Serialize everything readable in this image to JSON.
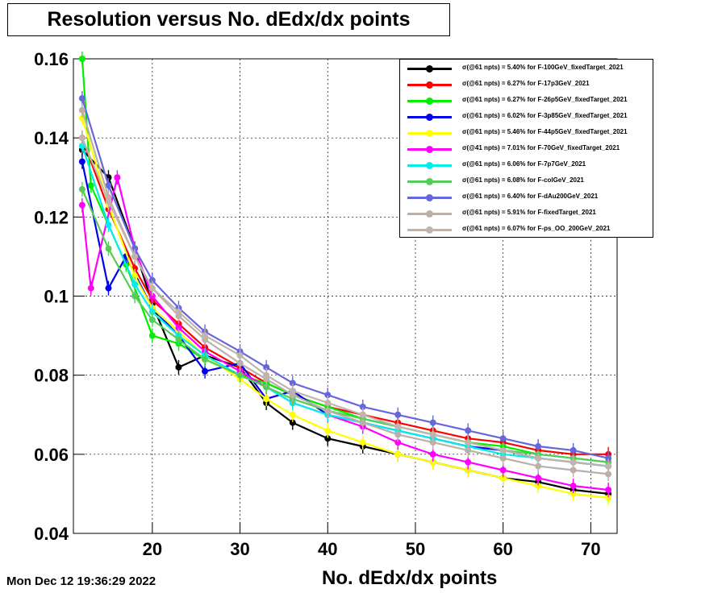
{
  "title": "Resolution versus No. dEdx/dx points",
  "xlabel": "No. dEdx/dx points",
  "datestamp": "Mon Dec 12 19:36:29 2022",
  "chart_data": {
    "type": "scatter",
    "title": "Resolution versus No. dEdx/dx points",
    "xlabel": "No. dEdx/dx points",
    "ylabel": "",
    "xlim": [
      11,
      73
    ],
    "ylim": [
      0.04,
      0.16
    ],
    "x_ticks": [
      "20",
      "30",
      "40",
      "50",
      "60",
      "70"
    ],
    "y_ticks": [
      "0.04",
      "0.06",
      "0.08",
      "0.1",
      "0.12",
      "0.14",
      "0.16"
    ],
    "grid": true,
    "legend_position": "top-right",
    "series": [
      {
        "name": "σ(@61 npts) =  5.40% for F-100GeV_fixedTarget_2021",
        "color": "#000000",
        "x": [
          12,
          15,
          18,
          20,
          23,
          26,
          30,
          33,
          36,
          40,
          44,
          48,
          52,
          56,
          60,
          64,
          68,
          72
        ],
        "y": [
          0.137,
          0.13,
          0.112,
          0.098,
          0.082,
          0.085,
          0.082,
          0.073,
          0.068,
          0.064,
          0.062,
          0.06,
          0.058,
          0.056,
          0.054,
          0.053,
          0.051,
          0.05
        ]
      },
      {
        "name": "σ(@61 npts) =  6.27% for F-17p3GeV_2021",
        "color": "#ff0000",
        "x": [
          12,
          15,
          18,
          20,
          23,
          26,
          30,
          33,
          36,
          40,
          44,
          48,
          52,
          56,
          60,
          64,
          68,
          72
        ],
        "y": [
          0.14,
          0.122,
          0.107,
          0.099,
          0.093,
          0.087,
          0.082,
          0.078,
          0.075,
          0.072,
          0.07,
          0.068,
          0.066,
          0.064,
          0.063,
          0.061,
          0.06,
          0.06
        ]
      },
      {
        "name": "σ(@61 npts) =  6.27% for F-26p5GeV_fixedTarget_2021",
        "color": "#00ee00",
        "x": [
          12,
          13,
          17,
          20,
          23,
          26,
          30,
          33,
          36,
          40,
          44,
          48,
          52,
          56,
          60,
          64,
          68,
          72
        ],
        "y": [
          0.16,
          0.128,
          0.108,
          0.09,
          0.088,
          0.084,
          0.08,
          0.078,
          0.075,
          0.072,
          0.069,
          0.067,
          0.065,
          0.063,
          0.062,
          0.06,
          0.059,
          0.058
        ]
      },
      {
        "name": "σ(@61 npts) =  6.02% for F-3p85GeV_fixedTarget_2021",
        "color": "#0000ee",
        "x": [
          12,
          15,
          17,
          20,
          23,
          26,
          30,
          33,
          36,
          40,
          44,
          48,
          52,
          56,
          60,
          64,
          68,
          72
        ],
        "y": [
          0.134,
          0.102,
          0.11,
          0.097,
          0.09,
          0.081,
          0.083,
          0.074,
          0.076,
          0.07,
          0.068,
          0.066,
          0.064,
          0.062,
          0.061,
          0.059,
          0.058,
          0.057
        ]
      },
      {
        "name": "σ(@61 npts) =  5.46% for F-44p5GeV_fixedTarget_2021",
        "color": "#ffff00",
        "x": [
          12,
          15,
          18,
          20,
          23,
          26,
          30,
          33,
          36,
          40,
          44,
          48,
          52,
          56,
          60,
          64,
          68,
          72
        ],
        "y": [
          0.145,
          0.123,
          0.105,
          0.097,
          0.091,
          0.085,
          0.079,
          0.074,
          0.07,
          0.066,
          0.063,
          0.06,
          0.058,
          0.056,
          0.054,
          0.052,
          0.05,
          0.049
        ]
      },
      {
        "name": "σ(@41 npts) =  7.01% for F-70GeV_fixedTarget_2021",
        "color": "#ff00ff",
        "x": [
          12,
          13,
          16,
          18,
          20,
          23,
          26,
          30,
          33,
          36,
          40,
          44,
          48,
          52,
          56,
          60,
          64,
          68,
          72
        ],
        "y": [
          0.123,
          0.102,
          0.13,
          0.112,
          0.1,
          0.092,
          0.086,
          0.081,
          0.077,
          0.073,
          0.07,
          0.067,
          0.063,
          0.06,
          0.058,
          0.056,
          0.054,
          0.052,
          0.051
        ]
      },
      {
        "name": "σ(@61 npts) =  6.06% for F-7p7GeV_2021",
        "color": "#00eeee",
        "x": [
          12,
          15,
          18,
          20,
          23,
          26,
          30,
          33,
          36,
          40,
          44,
          48,
          52,
          56,
          60,
          64,
          68,
          72
        ],
        "y": [
          0.138,
          0.118,
          0.103,
          0.096,
          0.09,
          0.085,
          0.08,
          0.077,
          0.073,
          0.07,
          0.068,
          0.066,
          0.064,
          0.062,
          0.06,
          0.059,
          0.058,
          0.057
        ]
      },
      {
        "name": "σ(@61 npts) =  6.08% for F-colGeV_2021",
        "color": "#55cc55",
        "x": [
          12,
          15,
          18,
          20,
          23,
          26,
          30,
          33,
          36,
          40,
          44,
          48,
          52,
          56,
          60,
          64,
          68,
          72
        ],
        "y": [
          0.127,
          0.112,
          0.1,
          0.094,
          0.089,
          0.084,
          0.08,
          0.077,
          0.074,
          0.071,
          0.069,
          0.067,
          0.065,
          0.063,
          0.061,
          0.06,
          0.059,
          0.058
        ]
      },
      {
        "name": "σ(@61 npts) =  6.40% for F-dAu200GeV_2021",
        "color": "#6666dd",
        "x": [
          12,
          15,
          18,
          20,
          23,
          26,
          30,
          33,
          36,
          40,
          44,
          48,
          52,
          56,
          60,
          64,
          68,
          72
        ],
        "y": [
          0.15,
          0.128,
          0.112,
          0.104,
          0.097,
          0.091,
          0.086,
          0.082,
          0.078,
          0.075,
          0.072,
          0.07,
          0.068,
          0.066,
          0.064,
          0.062,
          0.061,
          0.059
        ]
      },
      {
        "name": "σ(@61 npts) =  5.91% for F-fixedTarget_2021",
        "color": "#bbb0a8",
        "x": [
          12,
          15,
          18,
          20,
          23,
          26,
          30,
          33,
          36,
          40,
          44,
          48,
          52,
          56,
          60,
          64,
          68,
          72
        ],
        "y": [
          0.147,
          0.125,
          0.11,
          0.102,
          0.095,
          0.089,
          0.083,
          0.079,
          0.075,
          0.071,
          0.068,
          0.065,
          0.063,
          0.061,
          0.059,
          0.057,
          0.056,
          0.055
        ]
      },
      {
        "name": "σ(@61 npts) =  6.07% for F-ps_OO_200GeV_2021",
        "color": "#c0b4ac",
        "x": [
          12,
          15,
          18,
          20,
          23,
          26,
          30,
          33,
          36,
          40,
          44,
          48,
          52,
          56,
          60,
          64,
          68,
          72
        ],
        "y": [
          0.14,
          0.124,
          0.11,
          0.102,
          0.096,
          0.09,
          0.085,
          0.08,
          0.076,
          0.073,
          0.07,
          0.067,
          0.065,
          0.063,
          0.061,
          0.059,
          0.058,
          0.057
        ]
      }
    ]
  }
}
